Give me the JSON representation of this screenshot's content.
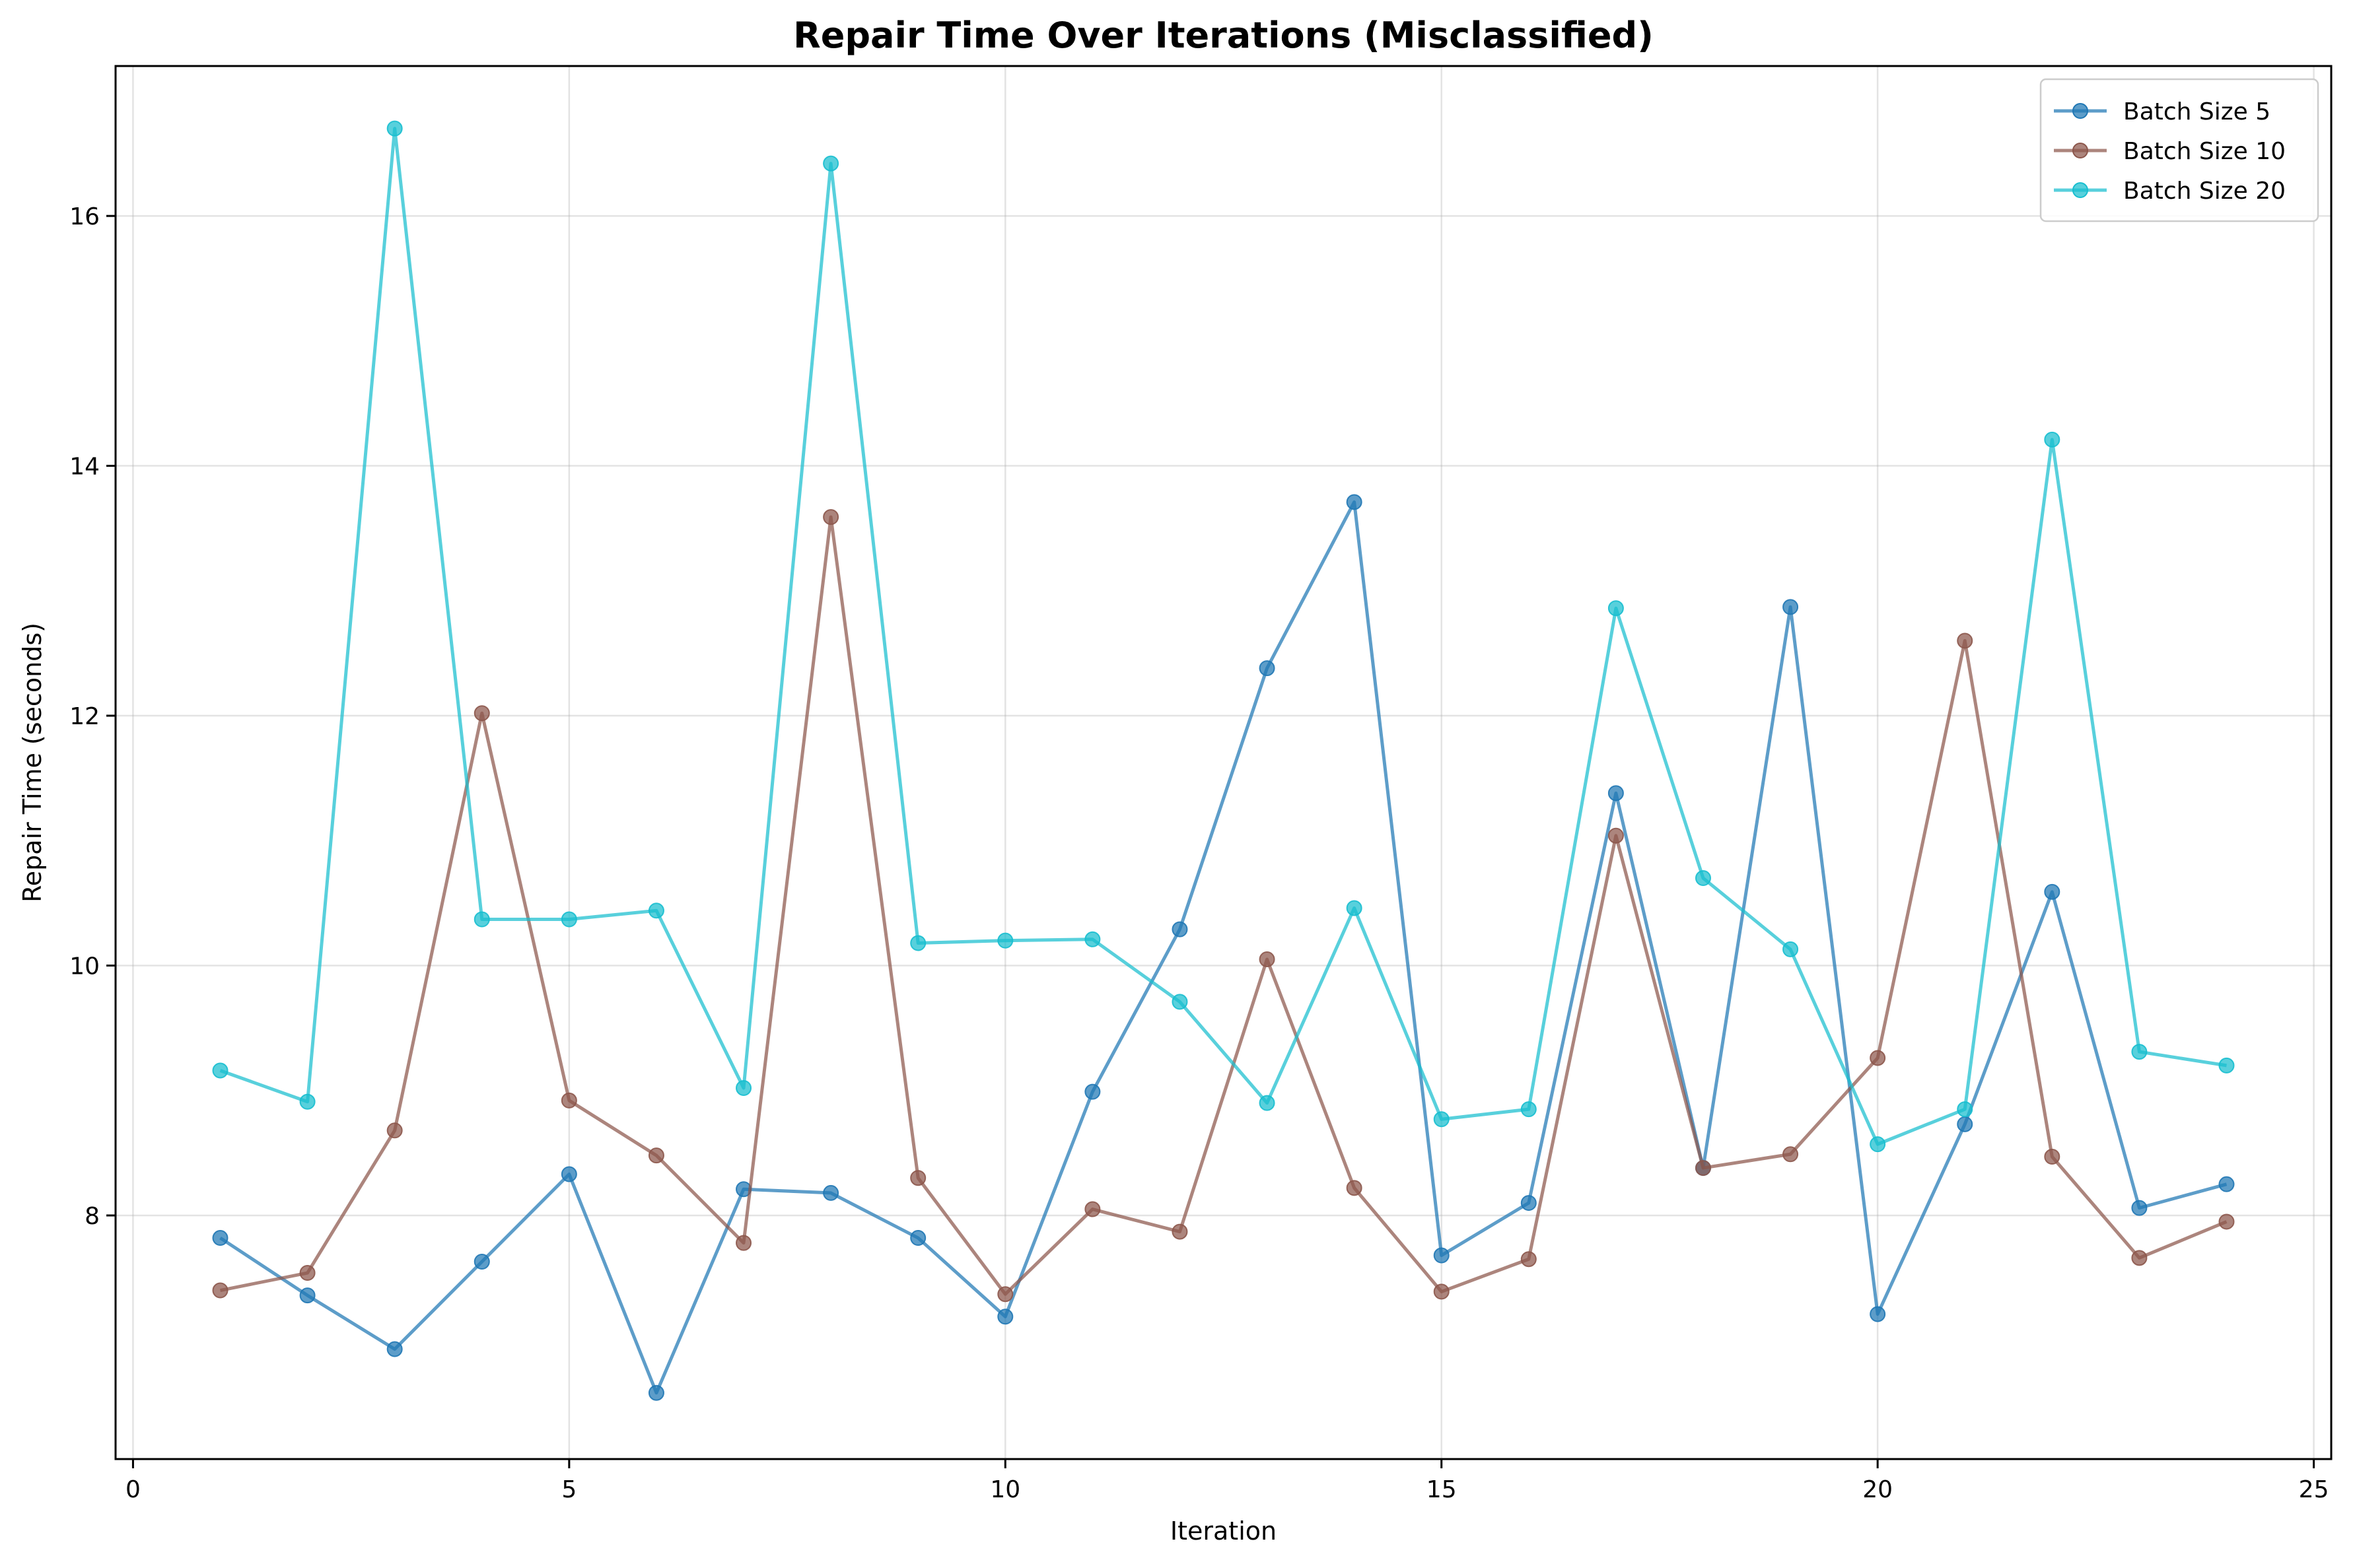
{
  "chart_data": {
    "type": "line",
    "title": "Repair Time Over Iterations (Misclassified)",
    "xlabel": "Iteration",
    "ylabel": "Repair Time (seconds)",
    "xlim": [
      -0.2,
      25.2
    ],
    "ylim": [
      6.05,
      17.2
    ],
    "xticks": [
      0,
      5,
      10,
      15,
      20,
      25
    ],
    "yticks": [
      8,
      10,
      12,
      14,
      16
    ],
    "grid": true,
    "legend_position": "top-right",
    "x": [
      1,
      2,
      3,
      4,
      5,
      6,
      7,
      8,
      9,
      10,
      11,
      12,
      13,
      14,
      15,
      16,
      17,
      18,
      19,
      20,
      21,
      22,
      23,
      24
    ],
    "series": [
      {
        "name": "Batch Size 5",
        "color": "#1f77b4",
        "values": [
          7.82,
          7.36,
          6.93,
          7.63,
          8.33,
          6.58,
          8.21,
          8.18,
          7.82,
          7.19,
          8.99,
          10.29,
          12.38,
          13.71,
          7.68,
          8.1,
          11.38,
          8.38,
          12.87,
          7.21,
          8.73,
          10.59,
          8.06,
          8.25
        ]
      },
      {
        "name": "Batch Size 10",
        "color": "#8c564b",
        "values": [
          7.4,
          7.54,
          8.68,
          12.02,
          8.92,
          8.48,
          7.78,
          13.59,
          8.3,
          7.37,
          8.05,
          7.87,
          10.05,
          8.22,
          7.39,
          7.65,
          11.04,
          8.38,
          8.49,
          9.26,
          12.6,
          8.47,
          7.66,
          7.95
        ]
      },
      {
        "name": "Batch Size 20",
        "color": "#17becf",
        "values": [
          9.16,
          8.91,
          16.7,
          10.37,
          10.37,
          10.44,
          9.02,
          16.42,
          10.18,
          10.2,
          10.21,
          9.71,
          8.9,
          10.46,
          8.77,
          8.85,
          12.86,
          10.7,
          10.13,
          8.57,
          8.85,
          14.21,
          9.31,
          9.2
        ]
      }
    ]
  }
}
